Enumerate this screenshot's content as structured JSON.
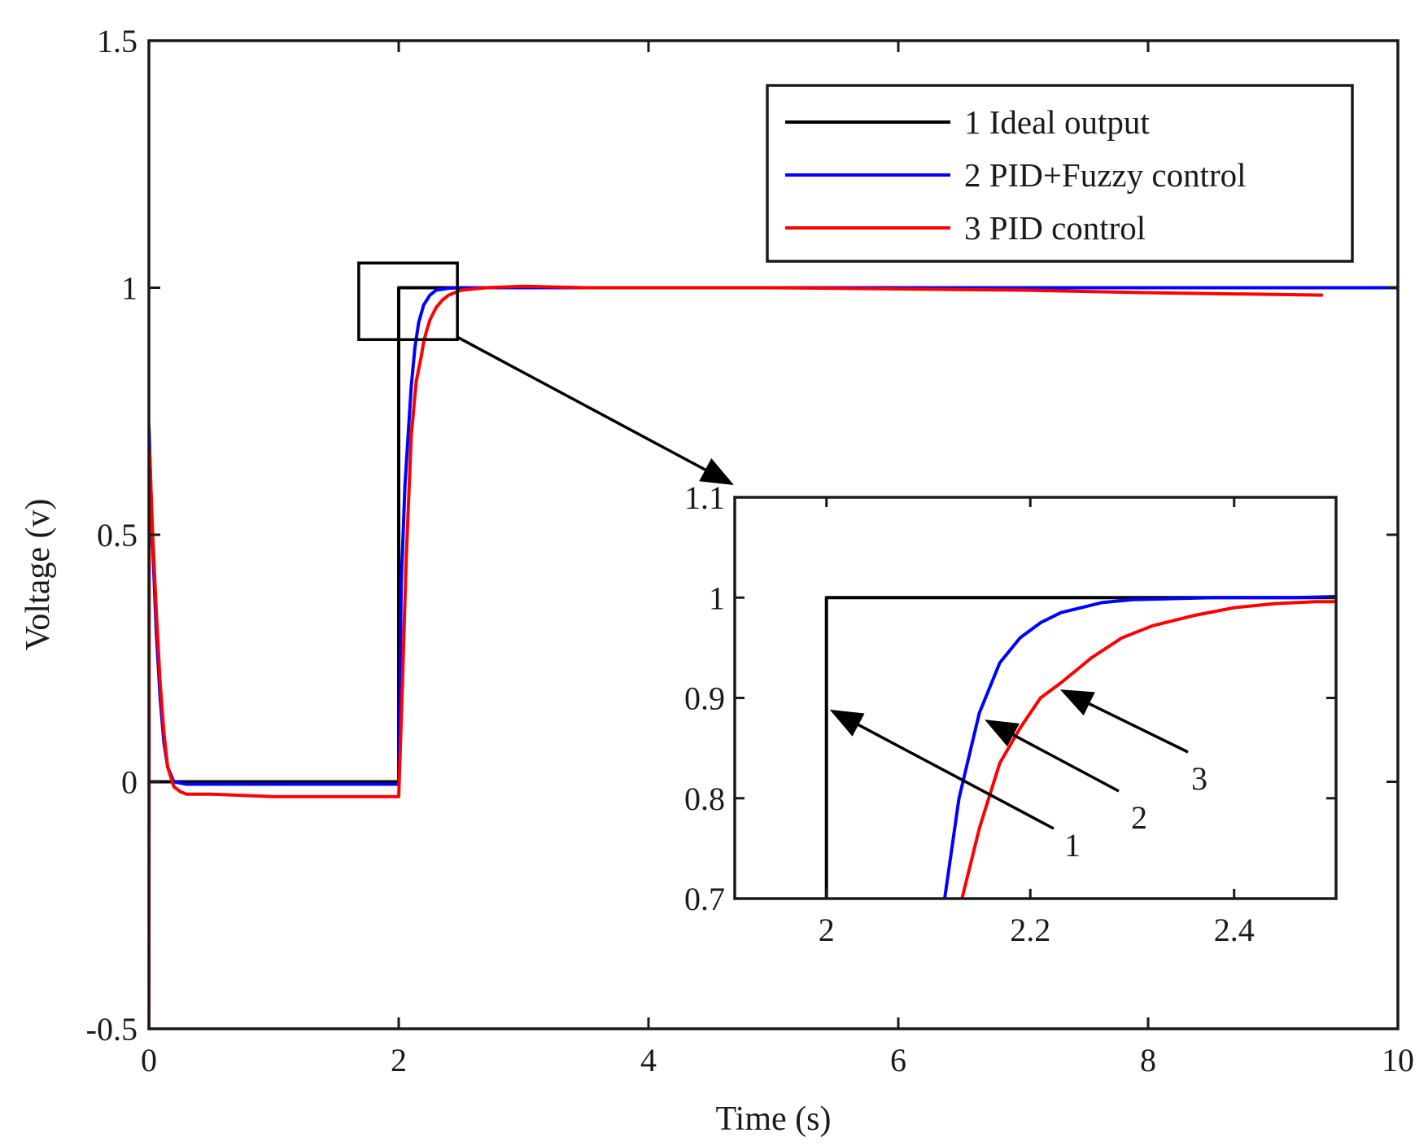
{
  "chart_data": [
    {
      "name": "main",
      "type": "line",
      "title": "",
      "xlabel": "Time (s)",
      "ylabel": "Voltage (v)",
      "xlim": [
        0,
        10
      ],
      "ylim": [
        -0.5,
        1.5
      ],
      "xticks": [
        0,
        2,
        4,
        6,
        8,
        10
      ],
      "yticks": [
        -0.5,
        0,
        0.5,
        1,
        1.5
      ],
      "xtick_labels": [
        "0",
        "2",
        "4",
        "6",
        "8",
        "10"
      ],
      "ytick_labels": [
        "-0.5",
        "0",
        "0.5",
        "1",
        "1.5"
      ],
      "grid": false,
      "legend_position": "top-right",
      "series": [
        {
          "name": "1 Ideal output",
          "color": "#000000",
          "x": [
            0,
            2,
            2,
            10
          ],
          "y": [
            0,
            0,
            1,
            1
          ]
        },
        {
          "name": "2 PID+Fuzzy control",
          "color": "#0000ff",
          "x": [
            0,
            0.005,
            0.03,
            0.06,
            0.09,
            0.12,
            0.15,
            0.2,
            0.3,
            1.0,
            1.6,
            2.0,
            2.02,
            2.05,
            2.08,
            2.1,
            2.13,
            2.16,
            2.2,
            2.25,
            2.3,
            2.4,
            2.5,
            3.0,
            4.0,
            6.0,
            8.0,
            10.0
          ],
          "y": [
            0.72,
            0.68,
            0.48,
            0.3,
            0.17,
            0.08,
            0.03,
            0.0,
            -0.005,
            -0.005,
            -0.005,
            -0.005,
            0.4,
            0.6,
            0.72,
            0.8,
            0.88,
            0.93,
            0.965,
            0.985,
            0.995,
            0.999,
            1.0,
            1.0,
            1.0,
            1.0,
            1.0,
            1.0
          ]
        },
        {
          "name": "3 PID control",
          "color": "#ff0000",
          "x": [
            0,
            0.002,
            0.005,
            0.03,
            0.06,
            0.09,
            0.12,
            0.15,
            0.2,
            0.25,
            0.3,
            0.5,
            1.0,
            1.5,
            2.0,
            2.03,
            2.06,
            2.1,
            2.14,
            2.18,
            2.2,
            2.22,
            2.25,
            2.3,
            2.35,
            2.4,
            2.5,
            2.7,
            3.0,
            3.5,
            5.0,
            7.0,
            8.0,
            9.4
          ],
          "y": [
            -0.5,
            0.4,
            0.67,
            0.5,
            0.34,
            0.2,
            0.1,
            0.03,
            -0.01,
            -0.02,
            -0.025,
            -0.025,
            -0.03,
            -0.03,
            -0.03,
            0.2,
            0.45,
            0.7,
            0.81,
            0.86,
            0.89,
            0.91,
            0.935,
            0.96,
            0.975,
            0.985,
            0.995,
            1.0,
            1.003,
            1.0,
            1.0,
            0.995,
            0.99,
            0.985
          ]
        }
      ]
    },
    {
      "name": "inset",
      "type": "line",
      "title": "",
      "xlabel": "",
      "ylabel": "",
      "xlim": [
        1.91,
        2.5
      ],
      "ylim": [
        0.7,
        1.1
      ],
      "xticks": [
        2,
        2.2,
        2.4
      ],
      "yticks": [
        0.7,
        0.8,
        0.9,
        1,
        1.1
      ],
      "xtick_labels": [
        "2",
        "2.2",
        "2.4"
      ],
      "ytick_labels": [
        "0.7",
        "0.8",
        "0.9",
        "1",
        "1.1"
      ],
      "grid": false,
      "zoom_box": {
        "x": [
          1.68,
          2.47
        ],
        "y": [
          0.895,
          1.05
        ]
      },
      "series": [
        {
          "name": "1",
          "color": "#000000",
          "x": [
            2.0,
            2.0,
            2.5
          ],
          "y": [
            0.7,
            1.0,
            1.0
          ]
        },
        {
          "name": "2",
          "color": "#0000ff",
          "x": [
            2.116,
            2.13,
            2.15,
            2.17,
            2.19,
            2.21,
            2.23,
            2.25,
            2.27,
            2.3,
            2.34,
            2.38,
            2.42,
            2.46,
            2.5
          ],
          "y": [
            0.7,
            0.8,
            0.885,
            0.935,
            0.96,
            0.975,
            0.985,
            0.99,
            0.995,
            0.998,
            0.999,
            1.0,
            1.0,
            1.0,
            1.001
          ]
        },
        {
          "name": "3",
          "color": "#ff0000",
          "x": [
            2.133,
            2.15,
            2.17,
            2.19,
            2.2,
            2.21,
            2.23,
            2.26,
            2.29,
            2.32,
            2.36,
            2.4,
            2.44,
            2.48,
            2.5
          ],
          "y": [
            0.7,
            0.77,
            0.835,
            0.87,
            0.885,
            0.9,
            0.915,
            0.94,
            0.96,
            0.972,
            0.982,
            0.99,
            0.994,
            0.996,
            0.996
          ]
        }
      ],
      "annotations": [
        {
          "text": "1",
          "points_to": [
            2.0,
            0.89
          ]
        },
        {
          "text": "2",
          "points_to": [
            2.152,
            0.88
          ]
        },
        {
          "text": "3",
          "points_to": [
            2.226,
            0.91
          ]
        }
      ]
    }
  ]
}
